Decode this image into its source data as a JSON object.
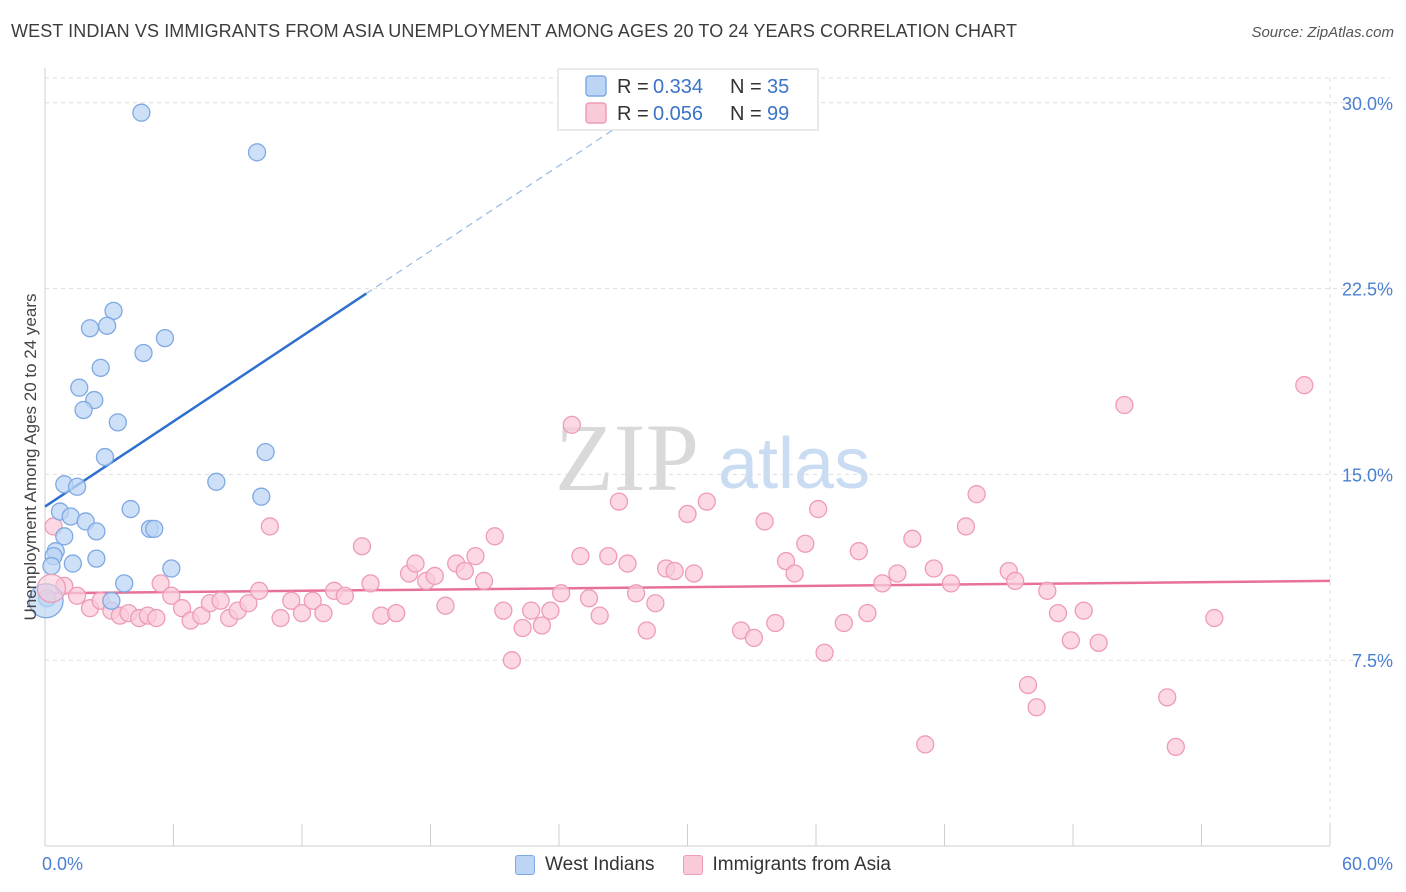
{
  "title": "WEST INDIAN VS IMMIGRANTS FROM ASIA UNEMPLOYMENT AMONG AGES 20 TO 24 YEARS CORRELATION CHART",
  "source": "Source: ZipAtlas.com",
  "watermark": {
    "zip": "ZIP",
    "atlas": "atlas"
  },
  "colors": {
    "blue_fill": "#bcd5f4",
    "blue_stroke": "#7ea9e3",
    "blue_line": "#2f6fcf",
    "pink_fill": "#f9cbd9",
    "pink_stroke": "#ee9cb6",
    "pink_line": "#e8719a",
    "tick_label": "#4a7fd1",
    "grid": "#dddddd"
  },
  "legend": {
    "r_label": "R =",
    "n_label": "N =",
    "rows": [
      {
        "series": "West Indians",
        "r": "0.334",
        "n": "35"
      },
      {
        "series": "Immigrants from Asia",
        "r": "0.056",
        "n": "99"
      }
    ]
  },
  "chart_data": {
    "type": "scatter",
    "title": "WEST INDIAN VS IMMIGRANTS FROM ASIA UNEMPLOYMENT AMONG AGES 20 TO 24 YEARS CORRELATION CHART",
    "xlabel": "",
    "ylabel": "Unemployment Among Ages 20 to 24 years",
    "xlim": [
      0,
      60
    ],
    "ylim": [
      0,
      31
    ],
    "x_tick_labels": [
      {
        "value": 0,
        "label": "0.0%"
      },
      {
        "value": 60,
        "label": "60.0%"
      }
    ],
    "y_tick_labels": [
      {
        "value": 7.5,
        "label": "7.5%"
      },
      {
        "value": 15,
        "label": "15.0%"
      },
      {
        "value": 22.5,
        "label": "22.5%"
      },
      {
        "value": 30,
        "label": "30.0%"
      }
    ],
    "grid": true,
    "legend_position": "top-center",
    "series": [
      {
        "name": "West Indians",
        "r": 0.334,
        "n": 35,
        "trend": {
          "x0": 0,
          "y0": 13.7,
          "x1": 15,
          "y1": 22.3,
          "dash_to_x": 30,
          "dash_to_y": 30.9
        },
        "points": [
          [
            4.5,
            29.6
          ],
          [
            9.9,
            28.0
          ],
          [
            3.2,
            21.6
          ],
          [
            2.1,
            20.9
          ],
          [
            2.9,
            21.0
          ],
          [
            5.6,
            20.5
          ],
          [
            4.6,
            19.9
          ],
          [
            2.6,
            19.3
          ],
          [
            1.6,
            18.5
          ],
          [
            2.3,
            18.0
          ],
          [
            1.8,
            17.6
          ],
          [
            3.4,
            17.1
          ],
          [
            10.3,
            15.9
          ],
          [
            2.8,
            15.7
          ],
          [
            0.9,
            14.6
          ],
          [
            1.5,
            14.5
          ],
          [
            8.0,
            14.7
          ],
          [
            10.1,
            14.1
          ],
          [
            0.7,
            13.5
          ],
          [
            4.0,
            13.6
          ],
          [
            1.2,
            13.3
          ],
          [
            1.9,
            13.1
          ],
          [
            4.9,
            12.8
          ],
          [
            5.1,
            12.8
          ],
          [
            2.4,
            12.7
          ],
          [
            0.9,
            12.5
          ],
          [
            0.5,
            11.9
          ],
          [
            0.4,
            11.7
          ],
          [
            2.4,
            11.6
          ],
          [
            1.3,
            11.4
          ],
          [
            0.3,
            11.3
          ],
          [
            5.9,
            11.2
          ],
          [
            3.7,
            10.6
          ],
          [
            3.1,
            9.9
          ],
          [
            0.1,
            10.0
          ]
        ]
      },
      {
        "name": "Immigrants from Asia",
        "r": 0.056,
        "n": 99,
        "trend": {
          "x0": 0,
          "y0": 10.2,
          "x1": 60,
          "y1": 10.7
        },
        "points": [
          [
            0.4,
            12.9
          ],
          [
            0.9,
            10.5
          ],
          [
            1.5,
            10.1
          ],
          [
            2.1,
            9.6
          ],
          [
            2.6,
            9.9
          ],
          [
            3.1,
            9.5
          ],
          [
            3.5,
            9.3
          ],
          [
            3.9,
            9.4
          ],
          [
            4.4,
            9.2
          ],
          [
            4.8,
            9.3
          ],
          [
            5.2,
            9.2
          ],
          [
            5.4,
            10.6
          ],
          [
            5.9,
            10.1
          ],
          [
            6.4,
            9.6
          ],
          [
            6.8,
            9.1
          ],
          [
            7.3,
            9.3
          ],
          [
            7.7,
            9.8
          ],
          [
            8.2,
            9.9
          ],
          [
            8.6,
            9.2
          ],
          [
            9.0,
            9.5
          ],
          [
            9.5,
            9.8
          ],
          [
            10.0,
            10.3
          ],
          [
            10.5,
            12.9
          ],
          [
            11.0,
            9.2
          ],
          [
            11.5,
            9.9
          ],
          [
            12.0,
            9.4
          ],
          [
            12.5,
            9.9
          ],
          [
            13.0,
            9.4
          ],
          [
            13.5,
            10.3
          ],
          [
            14.0,
            10.1
          ],
          [
            14.8,
            12.1
          ],
          [
            15.2,
            10.6
          ],
          [
            15.7,
            9.3
          ],
          [
            16.4,
            9.4
          ],
          [
            17.0,
            11.0
          ],
          [
            17.3,
            11.4
          ],
          [
            17.8,
            10.7
          ],
          [
            18.2,
            10.9
          ],
          [
            18.7,
            9.7
          ],
          [
            19.2,
            11.4
          ],
          [
            19.6,
            11.1
          ],
          [
            20.1,
            11.7
          ],
          [
            20.5,
            10.7
          ],
          [
            21.0,
            12.5
          ],
          [
            21.4,
            9.5
          ],
          [
            21.8,
            7.5
          ],
          [
            22.3,
            8.8
          ],
          [
            22.7,
            9.5
          ],
          [
            23.2,
            8.9
          ],
          [
            23.6,
            9.5
          ],
          [
            24.1,
            10.2
          ],
          [
            24.6,
            17.0
          ],
          [
            25.0,
            11.7
          ],
          [
            25.4,
            10.0
          ],
          [
            25.9,
            9.3
          ],
          [
            26.3,
            11.7
          ],
          [
            26.8,
            13.9
          ],
          [
            27.2,
            11.4
          ],
          [
            27.6,
            10.2
          ],
          [
            28.1,
            8.7
          ],
          [
            28.5,
            9.8
          ],
          [
            29.0,
            11.2
          ],
          [
            29.4,
            11.1
          ],
          [
            30.0,
            13.4
          ],
          [
            30.3,
            11.0
          ],
          [
            30.9,
            13.9
          ],
          [
            32.5,
            8.7
          ],
          [
            33.1,
            8.4
          ],
          [
            33.6,
            13.1
          ],
          [
            34.1,
            9.0
          ],
          [
            34.6,
            11.5
          ],
          [
            35.0,
            11.0
          ],
          [
            35.5,
            12.2
          ],
          [
            36.1,
            13.6
          ],
          [
            36.4,
            7.8
          ],
          [
            37.3,
            9.0
          ],
          [
            38.0,
            11.9
          ],
          [
            38.4,
            9.4
          ],
          [
            39.1,
            10.6
          ],
          [
            39.8,
            11.0
          ],
          [
            40.5,
            12.4
          ],
          [
            41.1,
            4.1
          ],
          [
            41.5,
            11.2
          ],
          [
            42.3,
            10.6
          ],
          [
            43.0,
            12.9
          ],
          [
            43.5,
            14.2
          ],
          [
            45.0,
            11.1
          ],
          [
            45.3,
            10.7
          ],
          [
            45.9,
            6.5
          ],
          [
            46.3,
            5.6
          ],
          [
            46.8,
            10.3
          ],
          [
            47.3,
            9.4
          ],
          [
            47.9,
            8.3
          ],
          [
            48.5,
            9.5
          ],
          [
            49.2,
            8.2
          ],
          [
            50.4,
            17.8
          ],
          [
            52.4,
            6.0
          ],
          [
            52.8,
            4.0
          ],
          [
            54.6,
            9.2
          ],
          [
            58.8,
            18.6
          ]
        ]
      }
    ]
  }
}
